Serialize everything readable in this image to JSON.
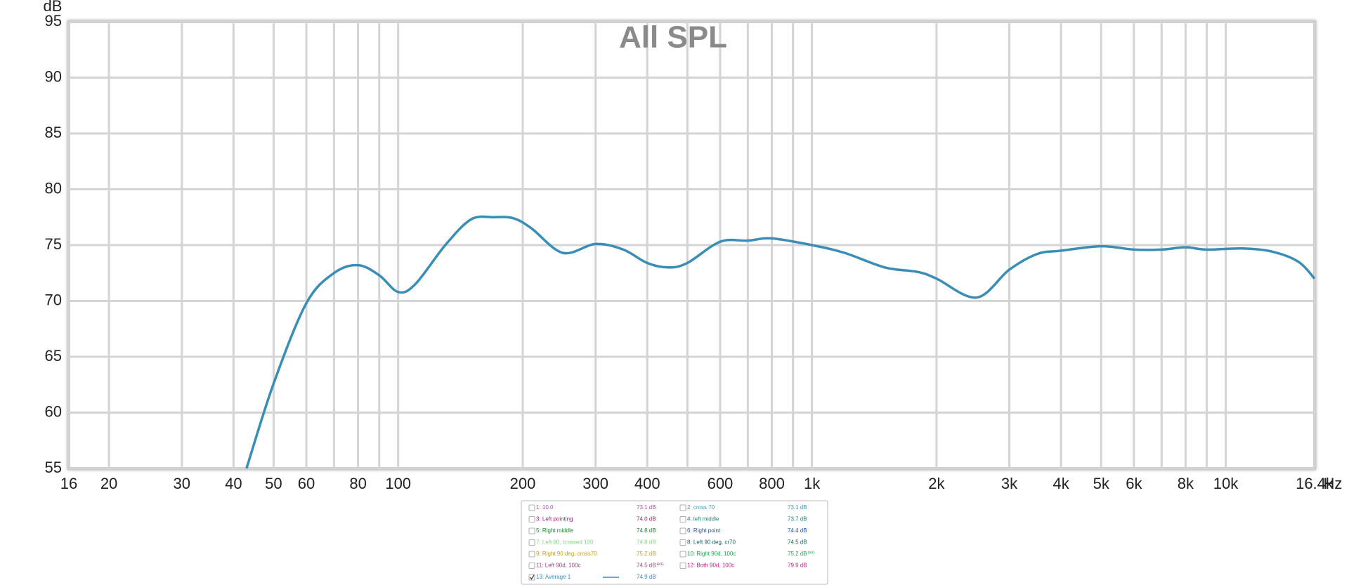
{
  "chart_data": {
    "type": "line",
    "title": "All SPL",
    "y_label": "dB",
    "x_unit": "Hz",
    "xscale": "log",
    "grid": true,
    "xlim": [
      16,
      16400
    ],
    "ylim": [
      55,
      95
    ],
    "yticks": [
      55,
      60,
      65,
      70,
      75,
      80,
      85,
      90,
      95
    ],
    "xticks": [
      16,
      20,
      30,
      40,
      50,
      60,
      80,
      100,
      200,
      300,
      400,
      600,
      800,
      {
        "value": 1000,
        "label": "1k"
      },
      {
        "value": 2000,
        "label": "2k"
      },
      {
        "value": 3000,
        "label": "3k"
      },
      {
        "value": 4000,
        "label": "4k"
      },
      {
        "value": 5000,
        "label": "5k"
      },
      {
        "value": 6000,
        "label": "6k"
      },
      {
        "value": 8000,
        "label": "8k"
      },
      {
        "value": 10000,
        "label": "10k"
      },
      {
        "value": 16400,
        "label": "16.4k"
      }
    ],
    "xminor": [
      70,
      90,
      500,
      700,
      900,
      7000,
      9000
    ],
    "series": [
      {
        "name": "13: Average 1",
        "color": "#3a8db5",
        "x": [
          43,
          50,
          60,
          70,
          80,
          90,
          100,
          110,
          130,
          150,
          170,
          190,
          210,
          250,
          300,
          350,
          400,
          450,
          500,
          600,
          700,
          800,
          1000,
          1200,
          1500,
          1800,
          2000,
          2500,
          3000,
          3500,
          4000,
          5000,
          6000,
          7000,
          8000,
          9000,
          11000,
          13000,
          15000,
          16400
        ],
        "values": [
          55,
          62.6,
          69.8,
          72.5,
          73.2,
          72.3,
          70.8,
          71.5,
          75,
          77.3,
          77.5,
          77.4,
          76.5,
          74.3,
          75.1,
          74.6,
          73.4,
          73,
          73.4,
          75.3,
          75.4,
          75.6,
          75,
          74.3,
          73,
          72.6,
          72,
          70.3,
          72.8,
          74.2,
          74.5,
          74.9,
          74.6,
          74.6,
          74.8,
          74.6,
          74.7,
          74.4,
          73.5,
          72
        ]
      }
    ],
    "legend": [
      {
        "name": "1: 10.0",
        "value": "73.1 dB",
        "color": "#b050b0",
        "checked": false
      },
      {
        "name": "2: cross 70",
        "value": "73.1 dB",
        "color": "#3a9ab0",
        "checked": false
      },
      {
        "name": "3: Left pointing",
        "value": "74.0 dB",
        "color": "#a02080",
        "checked": false
      },
      {
        "name": "4: left middle",
        "value": "73.7 dB",
        "color": "#208080",
        "checked": false
      },
      {
        "name": "5: Right middle",
        "value": "74.8 dB",
        "color": "#208030",
        "checked": false
      },
      {
        "name": "6: Right point",
        "value": "74.4 dB",
        "color": "#2050a0",
        "checked": false
      },
      {
        "name": "7: Left 90, crossed 100",
        "value": "74.8 dB",
        "color": "#80d880",
        "checked": false
      },
      {
        "name": "8: Left 90 deg, cr70",
        "value": "74.5 dB",
        "color": "#206060",
        "checked": false
      },
      {
        "name": "9: Right 90 deg, cross70",
        "value": "75.2 dB",
        "color": "#c0a020",
        "checked": false
      },
      {
        "name": "10: Right 90d, 100c",
        "value": "75.2 dB",
        "note": "AVG",
        "color": "#20a050",
        "checked": false
      },
      {
        "name": "11: Left 90d, 100c",
        "value": "74.5 dB",
        "note": "AVG",
        "color": "#a04080",
        "checked": false
      },
      {
        "name": "12: Both 90d, 100c",
        "value": "79.9 dB",
        "color": "#c02080",
        "checked": false
      },
      {
        "name": "13: Average 1",
        "value": "74.9 dB",
        "color": "#3a8db5",
        "checked": true
      }
    ]
  }
}
